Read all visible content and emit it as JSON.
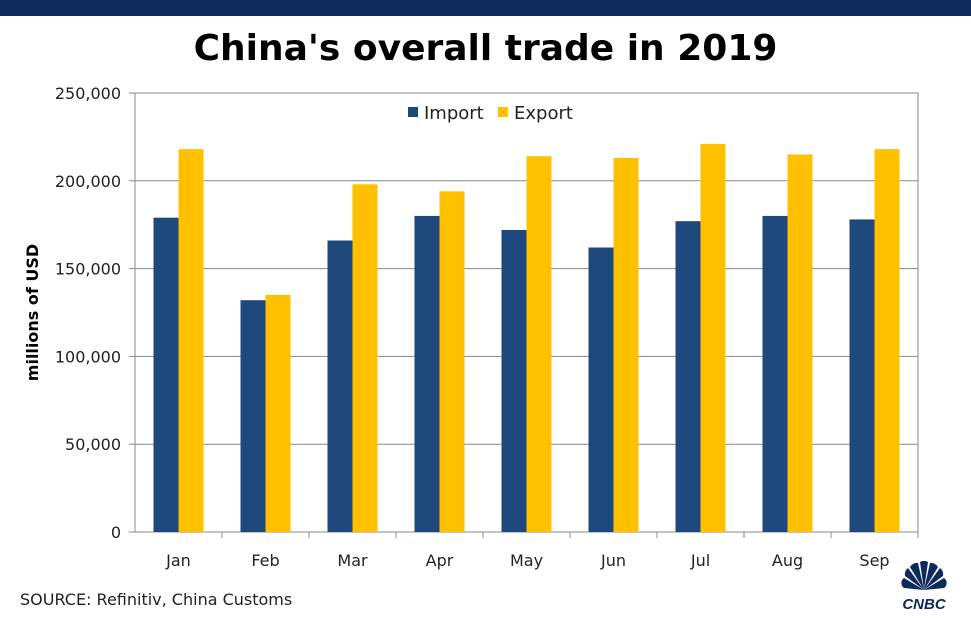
{
  "title": "China's overall trade in 2019",
  "source": "SOURCE: Refinitiv, China Customs",
  "logo_text": "CNBC",
  "colors": {
    "import": "#1f497d",
    "export": "#ffc000",
    "top_bar": "#0d2a5c"
  },
  "chart_data": {
    "type": "bar",
    "title": "China's overall trade in 2019",
    "xlabel": "",
    "ylabel": "millions of USD",
    "ylim": [
      0,
      250000
    ],
    "yticks": [
      0,
      50000,
      100000,
      150000,
      200000,
      250000
    ],
    "ytick_labels": [
      "0",
      "50,000",
      "100,000",
      "150,000",
      "200,000",
      "250,000"
    ],
    "grid": true,
    "legend_position": "top-center",
    "categories": [
      "Jan",
      "Feb",
      "Mar",
      "Apr",
      "May",
      "Jun",
      "Jul",
      "Aug",
      "Sep"
    ],
    "series": [
      {
        "name": "Import",
        "color": "#1f497d",
        "values": [
          179000,
          132000,
          166000,
          180000,
          172000,
          162000,
          177000,
          180000,
          178000
        ]
      },
      {
        "name": "Export",
        "color": "#ffc000",
        "values": [
          218000,
          135000,
          198000,
          194000,
          214000,
          213000,
          221000,
          215000,
          218000
        ]
      }
    ]
  }
}
